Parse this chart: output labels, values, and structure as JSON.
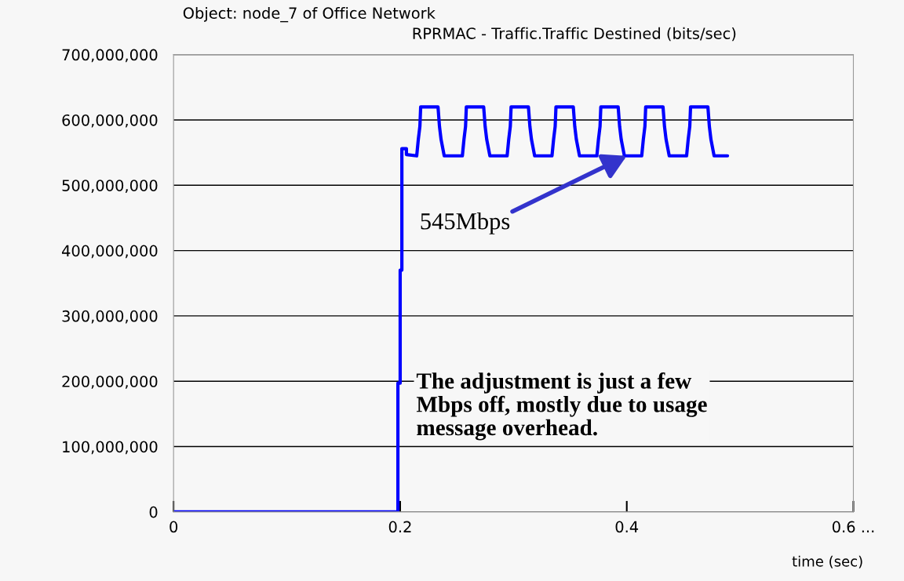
{
  "chart_data": {
    "type": "line",
    "title": "Object: node_7 of Office Network",
    "subtitle": "RPRMAC - Traffic.Traffic Destined (bits/sec)",
    "xlabel": "time (sec)",
    "xlim": [
      0,
      0.6
    ],
    "xticks": [
      0,
      0.2,
      0.4,
      {
        "value": 0.6,
        "label": "0.6 ..."
      }
    ],
    "ylim": [
      0,
      700000000
    ],
    "yticks": [
      {
        "value": 0,
        "label": "0"
      },
      {
        "value": 100000000,
        "label": "100,000,000"
      },
      {
        "value": 200000000,
        "label": "200,000,000"
      },
      {
        "value": 300000000,
        "label": "300,000,000"
      },
      {
        "value": 400000000,
        "label": "400,000,000"
      },
      {
        "value": 500000000,
        "label": "500,000,000"
      },
      {
        "value": 600000000,
        "label": "600,000,000"
      },
      {
        "value": 700000000,
        "label": "700,000,000"
      }
    ],
    "grid": "y",
    "series": [
      {
        "color": "#0000ff",
        "x": [
          0,
          0.198,
          0.198,
          0.2,
          0.2,
          0.2015,
          0.2015,
          0.2055,
          0.2055,
          0.2146,
          0.216,
          0.2174,
          0.2181,
          0.2334,
          0.2347,
          0.2361,
          0.2389,
          0.2549,
          0.2563,
          0.2577,
          0.2584,
          0.2737,
          0.275,
          0.2764,
          0.2792,
          0.2944,
          0.2958,
          0.2972,
          0.2979,
          0.3132,
          0.3145,
          0.3159,
          0.3187,
          0.334,
          0.3354,
          0.3368,
          0.3375,
          0.3528,
          0.3541,
          0.3555,
          0.3583,
          0.3736,
          0.375,
          0.3764,
          0.3771,
          0.3924,
          0.3937,
          0.3951,
          0.3979,
          0.4132,
          0.4146,
          0.416,
          0.4167,
          0.432,
          0.4333,
          0.4347,
          0.4375,
          0.4528,
          0.4542,
          0.4556,
          0.4563,
          0.4716,
          0.4729,
          0.4743,
          0.4771,
          0.4889
        ],
        "values": [
          0,
          0,
          197000000,
          197000000,
          370000000,
          370000000,
          556000000,
          556000000,
          547000000,
          545000000,
          570000000,
          590000000,
          620000000,
          620000000,
          590000000,
          570000000,
          545000000,
          545000000,
          570000000,
          590000000,
          620000000,
          620000000,
          590000000,
          570000000,
          545000000,
          545000000,
          570000000,
          590000000,
          620000000,
          620000000,
          590000000,
          570000000,
          545000000,
          545000000,
          570000000,
          590000000,
          620000000,
          620000000,
          590000000,
          570000000,
          545000000,
          545000000,
          570000000,
          590000000,
          620000000,
          620000000,
          590000000,
          570000000,
          545000000,
          545000000,
          570000000,
          590000000,
          620000000,
          620000000,
          590000000,
          570000000,
          545000000,
          545000000,
          570000000,
          590000000,
          620000000,
          620000000,
          590000000,
          570000000,
          545000000,
          545000000
        ]
      }
    ],
    "annotations": [
      {
        "text": "545Mbps",
        "x": 0.4,
        "y": 545000000
      },
      "The adjustment is just a few\nMbps off, mostly due to usage\nmessage overhead."
    ]
  }
}
